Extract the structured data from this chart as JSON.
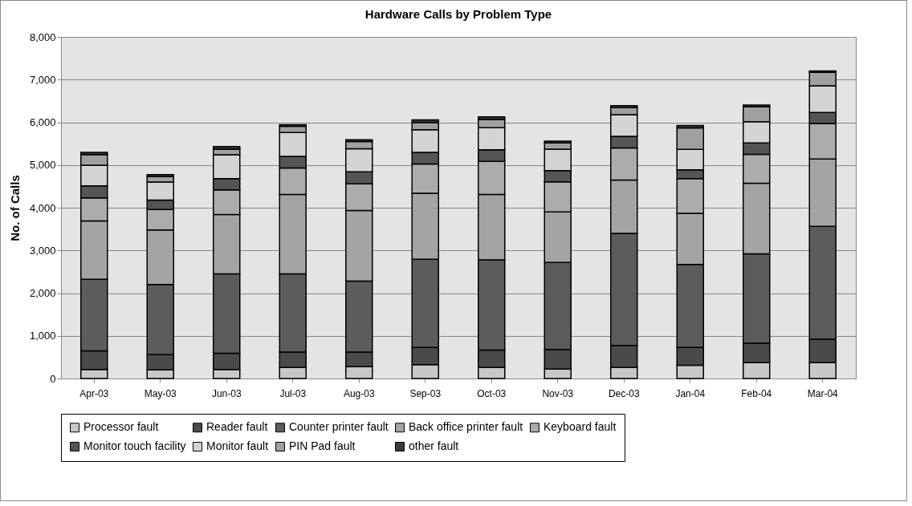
{
  "chart_data": {
    "type": "bar",
    "title": "Hardware Calls by Problem Type",
    "ylabel": "No. of Calls",
    "stacked": true,
    "grid": "y",
    "legend": "bottom",
    "categories": [
      "Apr-03",
      "May-03",
      "Jun-03",
      "Jul-03",
      "Aug-03",
      "Sep-03",
      "Oct-03",
      "Nov-03",
      "Dec-03",
      "Jan-04",
      "Feb-04",
      "Mar-04"
    ],
    "ylim": [
      0,
      8000
    ],
    "yticks": [
      {
        "value": 0,
        "label": "0"
      },
      {
        "value": 1000,
        "label": "1,000"
      },
      {
        "value": 2000,
        "label": "2,000"
      },
      {
        "value": 3000,
        "label": "3,000"
      },
      {
        "value": 4000,
        "label": "4,000"
      },
      {
        "value": 5000,
        "label": "5,000"
      },
      {
        "value": 6000,
        "label": "6,000"
      },
      {
        "value": 7000,
        "label": "7,000"
      },
      {
        "value": 8000,
        "label": "8,000"
      }
    ],
    "series": [
      {
        "name": "Processor fault",
        "color": "#c8c8c8",
        "values": [
          210,
          200,
          210,
          260,
          275,
          325,
          260,
          220,
          260,
          310,
          370,
          370
        ]
      },
      {
        "name": "Reader fault",
        "color": "#4a4a4a",
        "values": [
          440,
          360,
          380,
          360,
          345,
          405,
          405,
          460,
          515,
          420,
          455,
          550
        ]
      },
      {
        "name": "Counter printer fault",
        "color": "#5c5c5c",
        "values": [
          1675,
          1640,
          1860,
          1830,
          1660,
          2065,
          2115,
          2040,
          2625,
          1940,
          2095,
          2645
        ]
      },
      {
        "name": "Back office printer fault",
        "color": "#a4a4a4",
        "values": [
          1365,
          1280,
          1390,
          1860,
          1655,
          1545,
          1530,
          1180,
          1250,
          1200,
          1655,
          1575
        ]
      },
      {
        "name": "Keyboard fault",
        "color": "#acacac",
        "values": [
          540,
          480,
          580,
          620,
          625,
          685,
          775,
          705,
          750,
          810,
          675,
          830
        ]
      },
      {
        "name": "Monitor touch facility",
        "color": "#555555",
        "values": [
          280,
          220,
          260,
          270,
          280,
          270,
          270,
          265,
          270,
          205,
          265,
          260
        ]
      },
      {
        "name": "Monitor fault",
        "color": "#d4d4d4",
        "values": [
          485,
          420,
          560,
          560,
          540,
          530,
          520,
          500,
          510,
          480,
          500,
          625
        ]
      },
      {
        "name": "PIN Pad fault",
        "color": "#a0a0a0",
        "values": [
          250,
          130,
          130,
          145,
          170,
          170,
          190,
          145,
          165,
          505,
          345,
          315
        ]
      },
      {
        "name": "other fault",
        "color": "#3a3a3a",
        "values": [
          50,
          45,
          60,
          40,
          40,
          60,
          60,
          45,
          45,
          55,
          45,
          30
        ]
      }
    ]
  }
}
